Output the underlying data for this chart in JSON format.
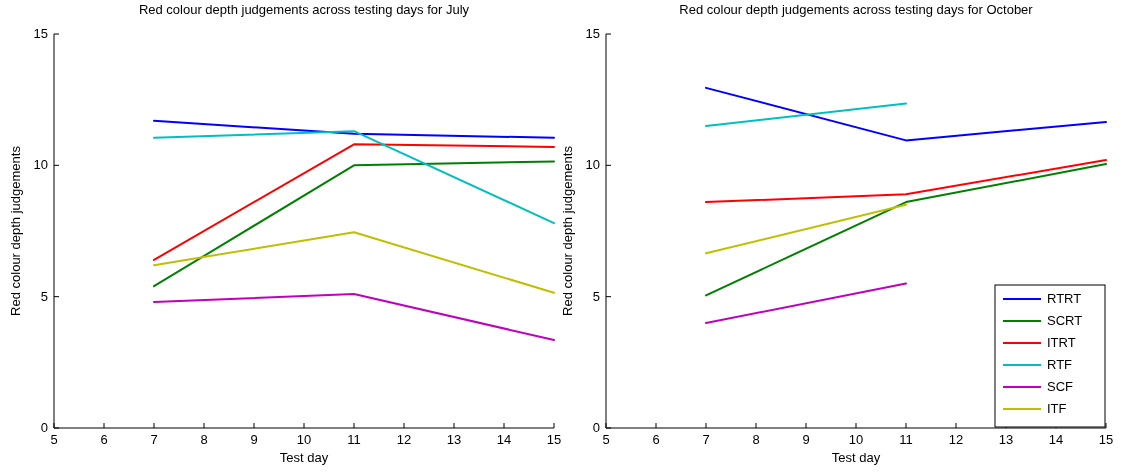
{
  "chart_data": [
    {
      "type": "line",
      "title": "Red colour depth judgements across testing days for July",
      "xlabel": "Test day",
      "ylabel": "Red colour depth judgements",
      "x": [
        7,
        11,
        15
      ],
      "xlim": [
        5,
        15
      ],
      "xticks": [
        5,
        6,
        7,
        8,
        9,
        10,
        11,
        12,
        13,
        14,
        15
      ],
      "ylim": [
        0,
        15
      ],
      "yticks": [
        0,
        5,
        10,
        15
      ],
      "legend": false,
      "line_style": "solid",
      "marker": "none",
      "series": [
        {
          "color": "#0000ff",
          "values": [
            11.7,
            11.2,
            11.05
          ]
        },
        {
          "color": "#008000",
          "values": [
            5.4,
            10.0,
            10.15
          ]
        },
        {
          "color": "#ff0000",
          "values": [
            6.4,
            10.8,
            10.7
          ]
        },
        {
          "color": "#00bfbf",
          "values": [
            11.05,
            11.3,
            7.8
          ]
        },
        {
          "color": "#bf00bf",
          "values": [
            4.8,
            5.1,
            3.35
          ]
        },
        {
          "color": "#bfbf00",
          "values": [
            6.2,
            7.45,
            5.15
          ]
        }
      ]
    },
    {
      "type": "line",
      "title": "Red colour depth judgements across testing days for October",
      "xlabel": "Test day",
      "ylabel": "Red colour depth judgements",
      "x": [
        7,
        11,
        15
      ],
      "xlim": [
        5,
        15
      ],
      "xticks": [
        5,
        6,
        7,
        8,
        9,
        10,
        11,
        12,
        13,
        14,
        15
      ],
      "ylim": [
        0,
        15
      ],
      "yticks": [
        0,
        5,
        10,
        15
      ],
      "legend": "bottom right",
      "line_style": "solid",
      "marker": "none",
      "series": [
        {
          "name": "RTRT",
          "color": "#0000ff",
          "values": [
            12.95,
            10.95,
            11.65
          ]
        },
        {
          "name": "SCRT",
          "color": "#008000",
          "values": [
            5.05,
            8.6,
            10.05
          ]
        },
        {
          "name": "ITRT",
          "color": "#ff0000",
          "values": [
            8.6,
            8.9,
            10.2
          ]
        },
        {
          "name": "RTF",
          "color": "#00bfbf",
          "values": [
            11.5,
            12.35,
            null
          ]
        },
        {
          "name": "SCF",
          "color": "#bf00bf",
          "values": [
            4.0,
            5.5,
            null
          ]
        },
        {
          "name": "ITF",
          "color": "#bfbf00",
          "values": [
            6.65,
            8.5,
            null
          ]
        }
      ]
    }
  ]
}
